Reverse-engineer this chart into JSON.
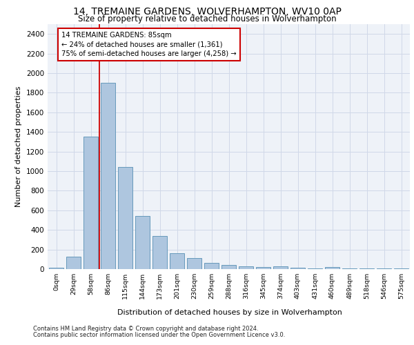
{
  "title_line1": "14, TREMAINE GARDENS, WOLVERHAMPTON, WV10 0AP",
  "title_line2": "Size of property relative to detached houses in Wolverhampton",
  "xlabel": "Distribution of detached houses by size in Wolverhampton",
  "ylabel": "Number of detached properties",
  "footer_line1": "Contains HM Land Registry data © Crown copyright and database right 2024.",
  "footer_line2": "Contains public sector information licensed under the Open Government Licence v3.0.",
  "annotation_line1": "14 TREMAINE GARDENS: 85sqm",
  "annotation_line2": "← 24% of detached houses are smaller (1,361)",
  "annotation_line3": "75% of semi-detached houses are larger (4,258) →",
  "bar_labels": [
    "0sqm",
    "29sqm",
    "58sqm",
    "86sqm",
    "115sqm",
    "144sqm",
    "173sqm",
    "201sqm",
    "230sqm",
    "259sqm",
    "288sqm",
    "316sqm",
    "345sqm",
    "374sqm",
    "403sqm",
    "431sqm",
    "460sqm",
    "489sqm",
    "518sqm",
    "546sqm",
    "575sqm"
  ],
  "bar_values": [
    15,
    125,
    1350,
    1900,
    1040,
    545,
    335,
    160,
    110,
    65,
    40,
    30,
    20,
    25,
    15,
    10,
    20,
    5,
    5,
    5,
    10
  ],
  "bar_color": "#aec6df",
  "bar_edge_color": "#6699bb",
  "vline_x": 2.5,
  "vline_color": "#cc0000",
  "annotation_box_color": "#cc0000",
  "grid_color": "#d0d8e8",
  "ylim": [
    0,
    2500
  ],
  "yticks": [
    0,
    200,
    400,
    600,
    800,
    1000,
    1200,
    1400,
    1600,
    1800,
    2000,
    2200,
    2400
  ],
  "bg_color": "#eef2f8"
}
